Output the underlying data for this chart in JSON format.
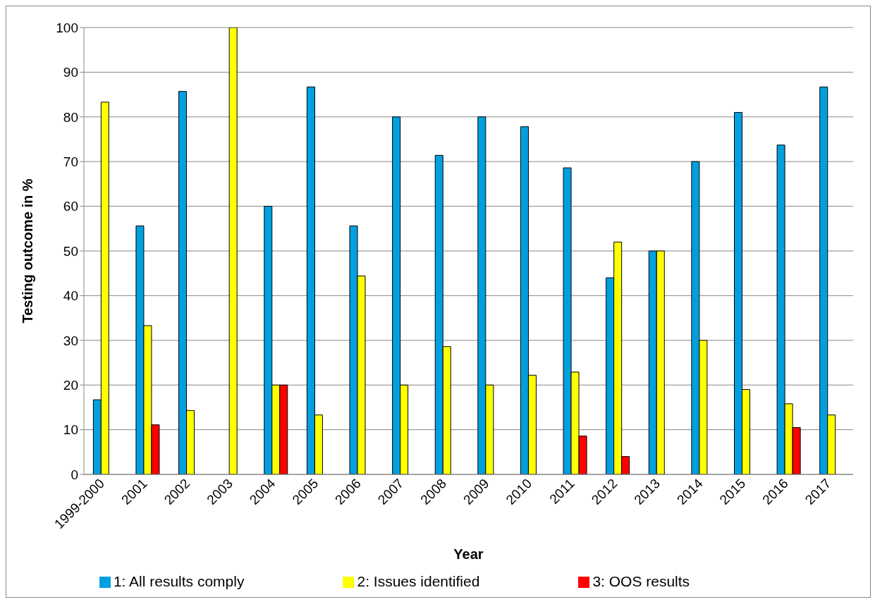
{
  "chart_data": {
    "type": "bar",
    "xlabel": "Year",
    "ylabel": "Testing outcome in %",
    "categories": [
      "1999-2000",
      "2001",
      "2002",
      "2003",
      "2004",
      "2005",
      "2006",
      "2007",
      "2008",
      "2009",
      "2010",
      "2011",
      "2012",
      "2013",
      "2014",
      "2015",
      "2016",
      "2017"
    ],
    "series": [
      {
        "name": "1: All results comply",
        "color": "#00a0e0",
        "values": [
          16.7,
          55.6,
          85.7,
          null,
          60,
          86.7,
          55.6,
          80,
          71.4,
          80,
          77.8,
          68.6,
          44,
          50,
          70,
          81,
          73.7,
          86.7
        ]
      },
      {
        "name": "2: Issues identified",
        "color": "#ffff00",
        "values": [
          83.3,
          33.3,
          14.3,
          100,
          20,
          13.3,
          44.4,
          20,
          28.6,
          20,
          22.2,
          22.9,
          52,
          50,
          30,
          19,
          15.8,
          13.3
        ]
      },
      {
        "name": "3: OOS results",
        "color": "#ff0000",
        "values": [
          null,
          11.1,
          null,
          null,
          20,
          null,
          null,
          null,
          null,
          null,
          null,
          8.6,
          4,
          null,
          null,
          null,
          10.5,
          null
        ]
      }
    ],
    "ylim": [
      0,
      100
    ],
    "yticks": [
      0,
      10,
      20,
      30,
      40,
      50,
      60,
      70,
      80,
      90,
      100
    ],
    "grid": "y",
    "legend": "bottom"
  }
}
